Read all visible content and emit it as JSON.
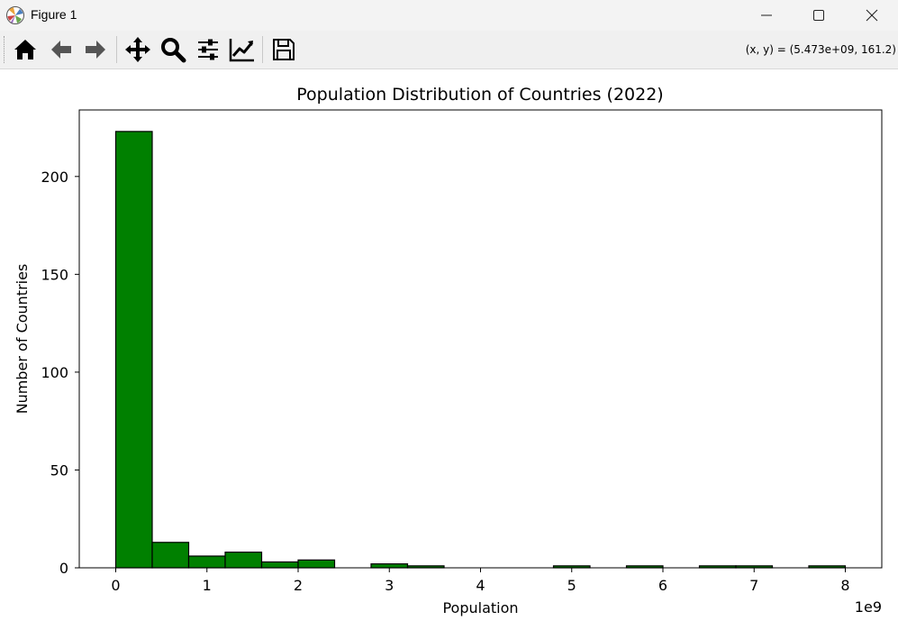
{
  "window": {
    "title": "Figure 1",
    "controls": [
      "minimize",
      "maximize",
      "close"
    ]
  },
  "toolbar": {
    "tools": [
      {
        "name": "home-icon",
        "tooltip": "Home"
      },
      {
        "name": "back-arrow-icon",
        "tooltip": "Back"
      },
      {
        "name": "forward-arrow-icon",
        "tooltip": "Forward"
      },
      {
        "name": "pan-icon",
        "tooltip": "Pan"
      },
      {
        "name": "zoom-icon",
        "tooltip": "Zoom"
      },
      {
        "name": "subplots-icon",
        "tooltip": "Subplots"
      },
      {
        "name": "axes-edit-icon",
        "tooltip": "Customize"
      },
      {
        "name": "save-icon",
        "tooltip": "Save"
      }
    ],
    "coords": "(x, y) = (5.473e+09, 161.2)"
  },
  "colors": {
    "bar_fill": "#008000",
    "bar_edge": "#000000",
    "toolbar_bg": "#f0f0f0",
    "titlebar_bg": "#f3f3f3"
  },
  "chart_data": {
    "type": "bar",
    "title": "Population Distribution of Countries (2022)",
    "xlabel": "Population",
    "ylabel": "Number of Countries",
    "x_offset_label": "1e9",
    "xlim": [
      -0.4,
      8.4
    ],
    "ylim": [
      0,
      234
    ],
    "xticks": [
      0,
      1,
      2,
      3,
      4,
      5,
      6,
      7,
      8
    ],
    "yticks": [
      0,
      50,
      100,
      150,
      200
    ],
    "bin_edges": [
      0,
      0.4,
      0.8,
      1.2,
      1.6,
      2.0,
      2.4,
      2.8,
      3.2,
      3.6,
      4.0,
      4.4,
      4.8,
      5.2,
      5.6,
      6.0,
      6.4,
      6.8,
      7.2,
      7.6,
      8.0
    ],
    "values": [
      223,
      13,
      6,
      8,
      3,
      4,
      0,
      2,
      1,
      0,
      0,
      0,
      1,
      0,
      1,
      0,
      1,
      1,
      0,
      1
    ],
    "grid": false
  }
}
